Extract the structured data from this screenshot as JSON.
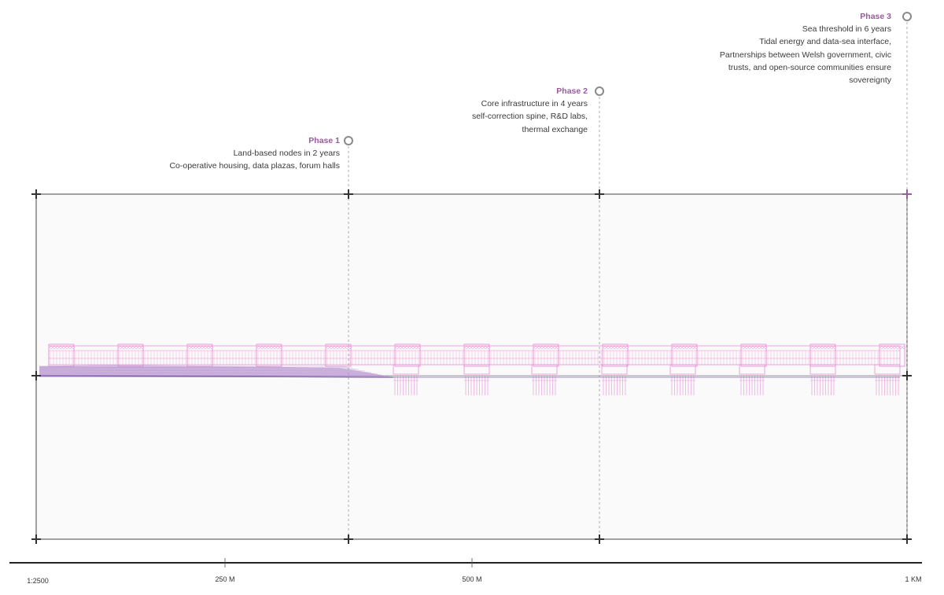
{
  "phases": [
    {
      "title": "Phase 1",
      "lines": [
        "Land-based nodes in 2 years",
        "Co-operative housing, data plazas, forum halls"
      ]
    },
    {
      "title": "Phase 2",
      "lines": [
        "Core infrastructure in 4 years",
        "self-correction spine, R&D labs,",
        "thermal exchange"
      ]
    },
    {
      "title": "Phase 3",
      "lines": [
        "Sea threshold in 6 years",
        "Tidal energy and data-sea interface,",
        "Partnerships between Welsh government, civic",
        "trusts, and open-source communities ensure",
        "sovereignty"
      ]
    }
  ],
  "scale_bar": {
    "ratio": "1:2500",
    "ticks": [
      "250 M",
      "500 M",
      "1 KM"
    ]
  },
  "colors": {
    "accent": "#9b5aa0",
    "structure": "#e88fd4",
    "terrain": "#7b5ab0",
    "frame": "#444444",
    "panel": "#fafafa"
  }
}
